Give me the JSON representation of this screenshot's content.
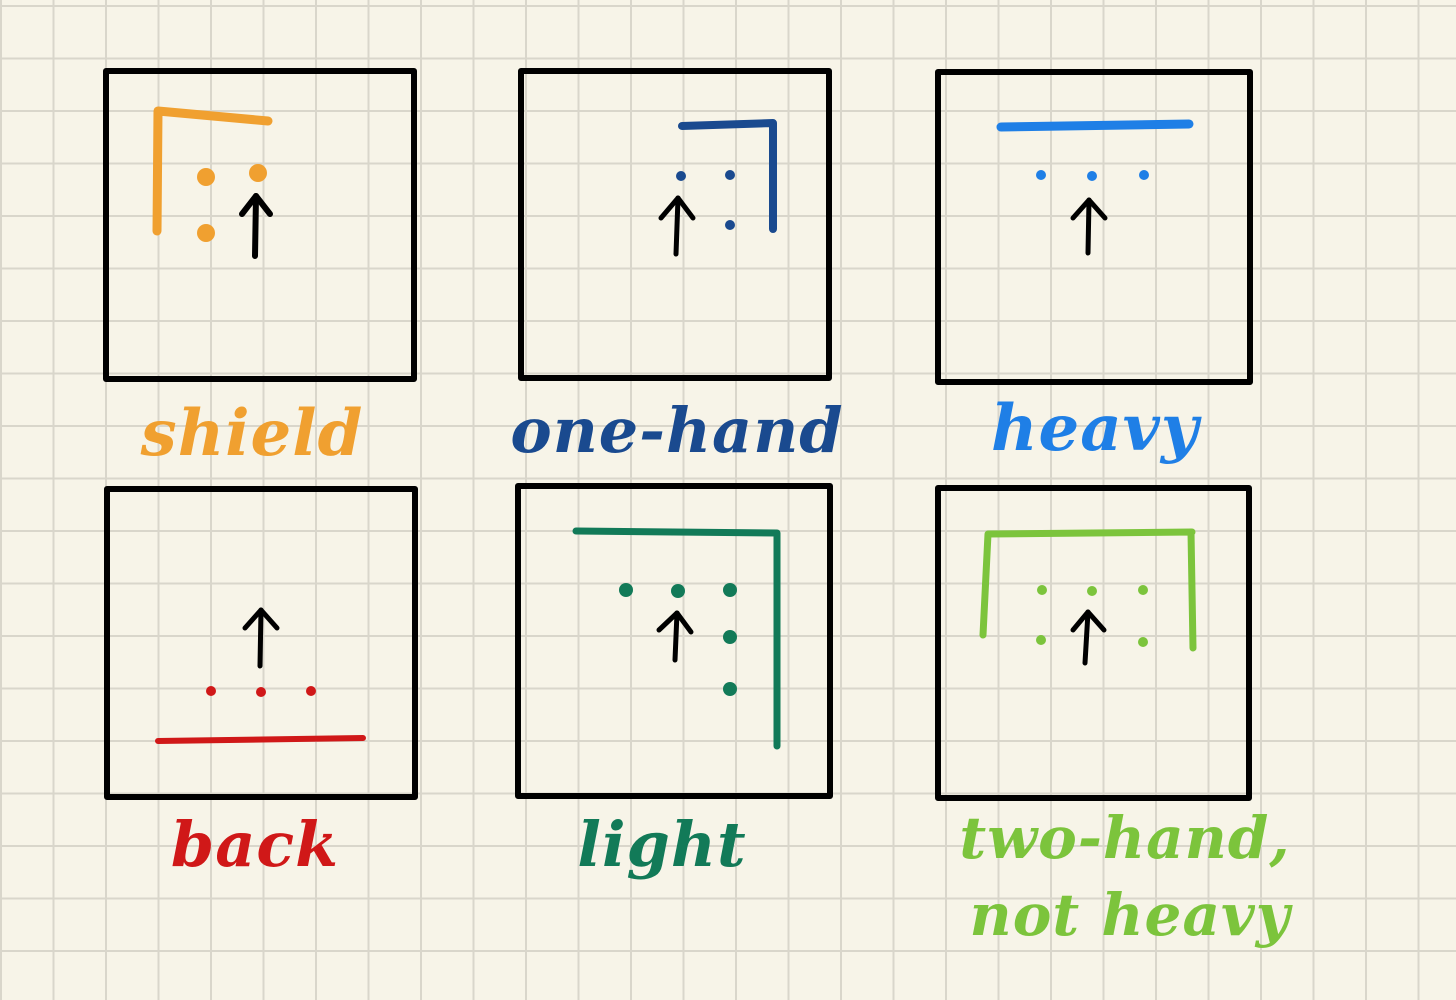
{
  "panels": [
    {
      "label": "shield",
      "color": "#f0a030"
    },
    {
      "label": "one-hand",
      "color": "#1a4a8f"
    },
    {
      "label": "heavy",
      "color": "#1f7fe6"
    },
    {
      "label": "back",
      "color": "#d01818"
    },
    {
      "label": "light",
      "color": "#127a58"
    },
    {
      "label_lines": [
        "two-hand,",
        "not heavy"
      ],
      "color": "#7cc43c"
    }
  ]
}
